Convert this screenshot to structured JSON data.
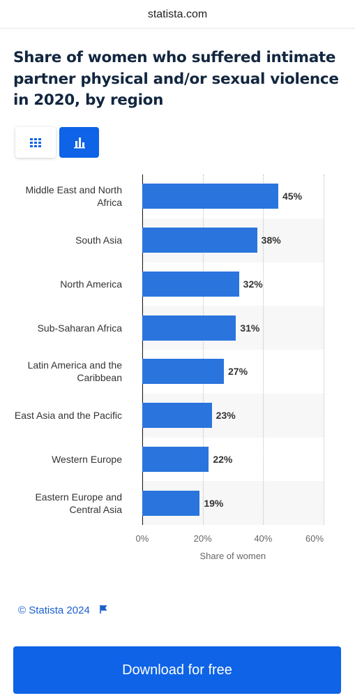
{
  "header": {
    "site": "statista.com"
  },
  "chart_data": {
    "type": "bar",
    "orientation": "horizontal",
    "title": "Share of women who suffered intimate partner physical and/or sexual violence in 2020, by region",
    "categories": [
      "Middle East and North Africa",
      "South Asia",
      "North America",
      "Sub-Saharan Africa",
      "Latin America and the Caribbean",
      "East Asia and the Pacific",
      "Western Europe",
      "Eastern Europe and Central Asia"
    ],
    "values": [
      45,
      38,
      32,
      31,
      27,
      23,
      22,
      19
    ],
    "value_labels": [
      "45%",
      "38%",
      "32%",
      "31%",
      "27%",
      "23%",
      "22%",
      "19%"
    ],
    "color": "#2a74dd",
    "xlim": [
      0,
      60
    ],
    "xticks": [
      {
        "value": 0,
        "label": "0%"
      },
      {
        "value": 20,
        "label": "20%"
      },
      {
        "value": 40,
        "label": "40%"
      },
      {
        "value": 60,
        "label": "60%"
      }
    ],
    "xlabel": "Share of women",
    "grid": true
  },
  "footer": {
    "copyright": "© Statista 2024",
    "button": "Download for free"
  }
}
